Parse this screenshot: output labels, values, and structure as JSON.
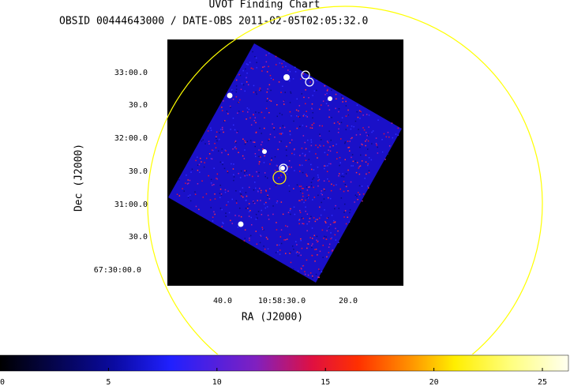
{
  "title": "UVOT Finding Chart",
  "subtitle": "OBSID 00444643000 / DATE-OBS 2011-02-05T02:05:32.0",
  "x_axis": {
    "label": "RA (J2000)",
    "ticks": [
      "40.0",
      "10:58:30.0",
      "20.0"
    ]
  },
  "y_axis": {
    "label": "Dec (J2000)",
    "ticks": [
      "33:00.0",
      "30.0",
      "32:00.0",
      "30.0",
      "31:00.0",
      "30.0",
      "67:30:00.0"
    ]
  },
  "colorbar": {
    "lim": [
      0,
      26.2
    ],
    "ticks": [
      0,
      5,
      10,
      15,
      20,
      25
    ]
  }
}
